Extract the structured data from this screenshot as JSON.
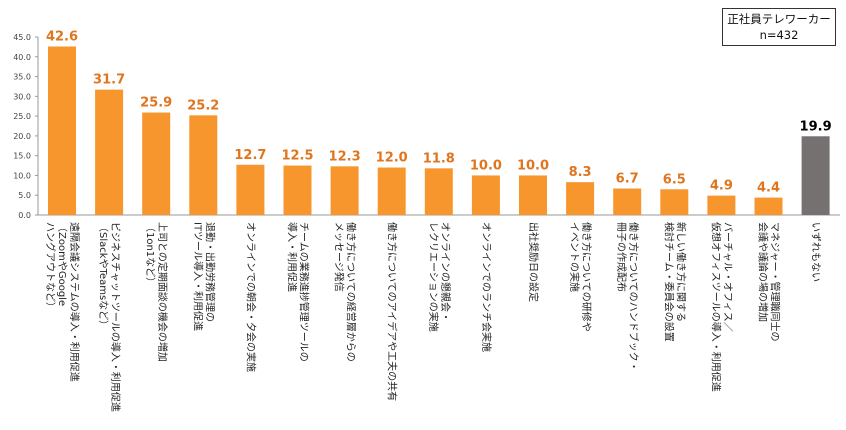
{
  "legend": {
    "line1": "正社員テレワーカー",
    "line2": "n=432"
  },
  "colors": {
    "bar": "#F7962D",
    "bar_last": "#767171",
    "value_label": "#E0751D",
    "value_label_last": "#000000",
    "axis": "#999999"
  },
  "chart_data": {
    "type": "bar",
    "ylim": [
      0,
      45
    ],
    "yticks": [
      "0.0",
      "5.0",
      "10.0",
      "15.0",
      "20.0",
      "25.0",
      "30.0",
      "35.0",
      "40.0",
      "45.0"
    ],
    "grid": false,
    "categories": [
      [
        "遠隔会議システムの導入・利用促進",
        "（ZoomやGoogle",
        "ハングアウトなど）"
      ],
      [
        "ビジネスチャットツールの導入・利用促進",
        "（SlackやTeamsなど）"
      ],
      [
        "上司との定期面談の機会の増加",
        "（1on1など）"
      ],
      [
        "退勤・出勤労務管理の",
        "ITツール導入・利用促進"
      ],
      [
        "オンラインでの朝会・夕会の実施"
      ],
      [
        "チームの業務進捗管理ツールの",
        "導入・利用促進"
      ],
      [
        "働き方についての経営層からの",
        "メッセージ発信"
      ],
      [
        "働き方についてのアイデアや工夫の共有"
      ],
      [
        "オンラインの懇親会・",
        "レクリエーションの実施"
      ],
      [
        "オンラインでのランチ会実施"
      ],
      [
        "出社奨励日の設定"
      ],
      [
        "働き方についての研修や",
        "イベントの実施"
      ],
      [
        "働き方についてのハンドブック・",
        "冊子の作成配布"
      ],
      [
        "新しい働き方に関する",
        "検討チーム・委員会の設置"
      ],
      [
        "バーチャル・オフィス／",
        "仮想オフィスツールの導入・利用促進"
      ],
      [
        "マネジャー・管理職同士の",
        "会議や議論の場の増加"
      ],
      [
        "いずれもない"
      ]
    ],
    "values": [
      42.6,
      31.7,
      25.9,
      25.2,
      12.7,
      12.5,
      12.3,
      12.0,
      11.8,
      10.0,
      10.0,
      8.3,
      6.7,
      6.5,
      4.9,
      4.4,
      19.9
    ],
    "value_labels": [
      "42.6",
      "31.7",
      "25.9",
      "25.2",
      "12.7",
      "12.5",
      "12.3",
      "12.0",
      "11.8",
      "10.0",
      "10.0",
      "8.3",
      "6.7",
      "6.5",
      "4.9",
      "4.4",
      "19.9"
    ]
  }
}
